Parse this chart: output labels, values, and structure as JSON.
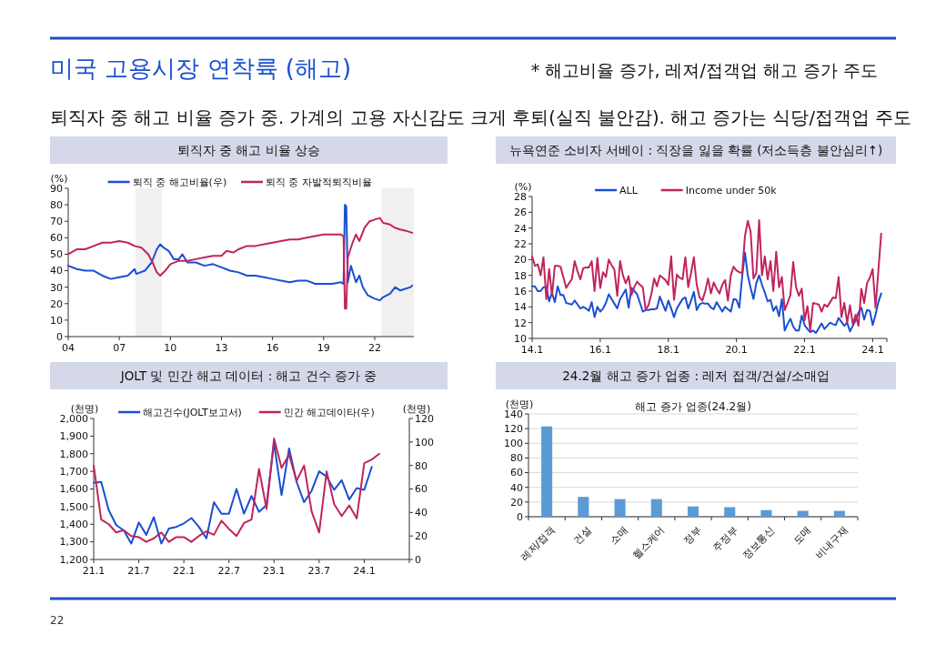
{
  "chart_data": [
    {
      "type": "other",
      "title": "미국 고용시장 연착륙 (해고)",
      "subtitle": "퇴직자 중 해고 비율 증가 중. 가계의 고용 자신감도 크게 후퇴(실직 불안감). 해고 증가는 식당/접객업 주도",
      "annotations": [
        "* 해고비율 증가, 레져/접객업 해고 증가 주도",
        "22"
      ]
    },
    {
      "type": "line",
      "title": "퇴직자 중 해고 비율 상승",
      "ylabel": "(%)",
      "legend": "top",
      "xlim": [
        2004,
        2024.3
      ],
      "xticks": [
        {
          "value": 2004,
          "label": "04"
        },
        {
          "value": 2007,
          "label": "07"
        },
        {
          "value": 2010,
          "label": "10"
        },
        {
          "value": 2013,
          "label": "13"
        },
        {
          "value": 2016,
          "label": "16"
        },
        {
          "value": 2019,
          "label": "19"
        },
        {
          "value": 2022,
          "label": "22"
        }
      ],
      "ylim": [
        0,
        90
      ],
      "yticks": [
        0,
        10,
        20,
        30,
        40,
        50,
        60,
        70,
        80,
        90
      ],
      "bands": [
        {
          "axis": "x",
          "from": 2007.95,
          "to": 2009.5,
          "color": "#f0f0f0"
        },
        {
          "axis": "x",
          "from": 2022.4,
          "to": 2024.3,
          "color": "#f0f0f0"
        }
      ],
      "series": [
        {
          "name": "퇴직 중 해고비율(우)",
          "color": "#1a4fd0",
          "x": [
            2004,
            2004.5,
            2005,
            2005.5,
            2006,
            2006.5,
            2007,
            2007.5,
            2007.9,
            2008,
            2008.5,
            2008.9,
            2009.2,
            2009.4,
            2009.6,
            2009.9,
            2010.2,
            2010.5,
            2010.7,
            2011,
            2011.5,
            2012,
            2012.5,
            2013,
            2013.5,
            2014,
            2014.5,
            2015,
            2015.5,
            2016,
            2016.5,
            2017,
            2017.5,
            2018,
            2018.5,
            2019,
            2019.5,
            2020,
            2020.17,
            2020.25,
            2020.33,
            2020.42,
            2020.6,
            2020.9,
            2021.1,
            2021.3,
            2021.6,
            2022,
            2022.3,
            2022.5,
            2022.9,
            2023.2,
            2023.5,
            2023.8,
            2024.1,
            2024.2
          ],
          "values": [
            43,
            41,
            40,
            40,
            37,
            35,
            36,
            37,
            41,
            38,
            40,
            45,
            53,
            56,
            54,
            52,
            47,
            47,
            50,
            45,
            45,
            43,
            44,
            42,
            40,
            39,
            37,
            37,
            36,
            35,
            34,
            33,
            34,
            34,
            32,
            32,
            32,
            33,
            32,
            80,
            79,
            33,
            43,
            33,
            37,
            30,
            25,
            23,
            22,
            24,
            26,
            30,
            28,
            29,
            30,
            31
          ]
        },
        {
          "name": "퇴직 중 자발적퇴직비율",
          "color": "#c0245e",
          "x": [
            2004,
            2004.5,
            2005,
            2005.5,
            2006,
            2006.5,
            2007,
            2007.5,
            2007.9,
            2008.3,
            2008.7,
            2009,
            2009.2,
            2009.4,
            2009.7,
            2010,
            2010.5,
            2011,
            2011.5,
            2012,
            2012.5,
            2013,
            2013.3,
            2013.7,
            2014,
            2014.5,
            2015,
            2015.5,
            2016,
            2016.5,
            2017,
            2017.5,
            2018,
            2018.5,
            2019,
            2019.5,
            2020,
            2020.17,
            2020.25,
            2020.33,
            2020.42,
            2020.7,
            2020.9,
            2021.1,
            2021.4,
            2021.7,
            2022,
            2022.3,
            2022.5,
            2022.9,
            2023.2,
            2023.5,
            2023.9,
            2024.2
          ],
          "values": [
            50,
            53,
            53,
            55,
            57,
            57,
            58,
            57,
            55,
            54,
            50,
            44,
            39,
            37,
            40,
            44,
            46,
            46,
            47,
            48,
            49,
            49,
            52,
            51,
            53,
            55,
            55,
            56,
            57,
            58,
            59,
            59,
            60,
            61,
            62,
            62,
            62,
            61,
            17,
            17,
            48,
            57,
            62,
            58,
            66,
            70,
            71,
            72,
            69,
            68,
            66,
            65,
            64,
            63
          ]
        }
      ]
    },
    {
      "type": "line",
      "title": "뉴욕연준 소비자 서베이 : 직장을 잃을 확률 (저소득층 불안심리↑)",
      "ylabel": "(%)",
      "legend": "top",
      "ylim": [
        10,
        28
      ],
      "yticks": [
        10,
        12,
        14,
        16,
        18,
        20,
        22,
        24,
        26,
        28
      ],
      "categories": [
        "14.1",
        null,
        null,
        null,
        null,
        null,
        null,
        null,
        null,
        null,
        null,
        null,
        null,
        null,
        null,
        null,
        null,
        null,
        null,
        null,
        null,
        null,
        null,
        null,
        "16.1",
        null,
        null,
        null,
        null,
        null,
        null,
        null,
        null,
        null,
        null,
        null,
        null,
        null,
        null,
        null,
        null,
        null,
        null,
        null,
        null,
        null,
        null,
        null,
        "18.1",
        null,
        null,
        null,
        null,
        null,
        null,
        null,
        null,
        null,
        null,
        null,
        null,
        null,
        null,
        null,
        null,
        null,
        null,
        null,
        null,
        null,
        null,
        null,
        "20.1",
        null,
        null,
        null,
        null,
        null,
        null,
        null,
        null,
        null,
        null,
        null,
        null,
        null,
        null,
        null,
        null,
        null,
        null,
        null,
        null,
        null,
        null,
        null,
        "22.1",
        null,
        null,
        null,
        null,
        null,
        null,
        null,
        null,
        null,
        null,
        null,
        null,
        null,
        null,
        null,
        null,
        null,
        null,
        null,
        null,
        null,
        null,
        null,
        "24.1",
        null,
        null,
        null,
        null,
        null
      ],
      "series": [
        {
          "name": "ALL",
          "color": "#1a4fd0",
          "values": [
            16.6,
            16.6,
            16.0,
            16.0,
            16.5,
            16.5,
            14.7,
            15.8,
            14.6,
            16.6,
            15.5,
            15.5,
            14.5,
            14.4,
            14.3,
            14.8,
            14.3,
            13.8,
            14.0,
            13.8,
            13.5,
            14.6,
            12.7,
            14.0,
            13.4,
            13.8,
            14.5,
            15.6,
            15.0,
            14.4,
            13.8,
            15.0,
            15.6,
            16.2,
            13.9,
            16.4,
            16.0,
            15.6,
            14.5,
            13.4,
            13.6,
            13.6,
            13.7,
            13.7,
            13.8,
            15.3,
            14.4,
            13.5,
            14.8,
            13.8,
            12.7,
            13.8,
            14.4,
            15.0,
            15.2,
            13.8,
            14.8,
            15.9,
            13.6,
            14.3,
            14.5,
            14.4,
            14.4,
            13.9,
            13.7,
            14.6,
            14.0,
            13.4,
            14.0,
            13.7,
            13.4,
            15.0,
            14.9,
            13.9,
            17.8,
            20.9,
            18.0,
            16.4,
            15.0,
            17.0,
            18.0,
            16.8,
            15.8,
            14.7,
            14.9,
            13.5,
            14.1,
            12.8,
            15.0,
            11.0,
            11.8,
            12.5,
            11.5,
            11.0,
            11.0,
            12.9,
            11.7,
            11.2,
            10.8,
            11.0,
            10.7,
            11.3,
            11.9,
            11.2,
            11.6,
            12.0,
            11.8,
            11.7,
            12.6,
            12.1,
            11.6,
            12.0,
            10.9,
            11.6,
            12.3,
            13.3,
            13.9,
            12.4,
            13.6,
            13.5,
            11.7,
            13.0,
            14.6,
            15.7,
            null,
            null
          ]
        },
        {
          "name": "Income under 50k",
          "color": "#c0245e",
          "values": [
            20.4,
            19.2,
            19.4,
            18.0,
            20.3,
            15.0,
            18.8,
            15.4,
            19.2,
            19.2,
            19.1,
            17.8,
            16.4,
            17.0,
            17.5,
            19.8,
            18.5,
            17.5,
            18.9,
            19.0,
            19.0,
            19.8,
            16.0,
            20.2,
            16.4,
            18.4,
            17.8,
            20.0,
            19.3,
            18.7,
            15.4,
            19.8,
            18.0,
            17.0,
            17.9,
            15.5,
            16.5,
            17.2,
            16.8,
            16.5,
            13.6,
            14.2,
            15.6,
            17.6,
            16.6,
            18.0,
            17.7,
            17.4,
            16.8,
            20.4,
            14.9,
            18.1,
            17.7,
            17.5,
            20.3,
            16.5,
            18.3,
            20.3,
            16.8,
            15.2,
            14.8,
            16.0,
            17.6,
            15.7,
            17.1,
            16.3,
            15.7,
            16.8,
            17.4,
            14.8,
            18.0,
            19.1,
            18.6,
            18.4,
            18.3,
            23.0,
            24.9,
            23.5,
            17.6,
            18.3,
            25.0,
            18.0,
            20.4,
            17.5,
            19.8,
            16.0,
            21.0,
            16.5,
            17.8,
            13.6,
            14.5,
            15.5,
            19.7,
            16.5,
            15.4,
            16.3,
            12.3,
            14.1,
            11.0,
            14.5,
            14.4,
            14.3,
            13.4,
            14.3,
            14.0,
            14.6,
            15.2,
            15.1,
            17.8,
            12.7,
            14.5,
            12.0,
            14.2,
            11.8,
            13.0,
            11.6,
            16.3,
            14.5,
            17.0,
            17.7,
            18.8,
            13.9,
            18.6,
            23.3,
            null,
            null
          ]
        }
      ]
    },
    {
      "type": "line",
      "title": "JOLT 및 민간 해고 데이터 : 해고 건수 증가 중",
      "ylabel": "(천명)",
      "y2label": "(천명)",
      "legend": "top",
      "ylim": [
        1200,
        2000
      ],
      "yticks": [
        {
          "value": 1200,
          "label": "1,200"
        },
        {
          "value": 1300,
          "label": "1,300"
        },
        {
          "value": 1400,
          "label": "1,400"
        },
        {
          "value": 1500,
          "label": "1,500"
        },
        {
          "value": 1600,
          "label": "1,600"
        },
        {
          "value": 1700,
          "label": "1,700"
        },
        {
          "value": 1800,
          "label": "1,800"
        },
        {
          "value": 1900,
          "label": "1,900"
        },
        {
          "value": 2000,
          "label": "2,000"
        }
      ],
      "y2lim": [
        0,
        120
      ],
      "y2ticks": [
        0,
        20,
        40,
        60,
        80,
        100,
        120
      ],
      "categories": [
        "21.1",
        null,
        null,
        null,
        null,
        null,
        "21.7",
        null,
        null,
        null,
        null,
        null,
        "22.1",
        null,
        null,
        null,
        null,
        null,
        "22.7",
        null,
        null,
        null,
        null,
        null,
        "23.1",
        null,
        null,
        null,
        null,
        null,
        "23.7",
        null,
        null,
        null,
        null,
        null,
        "24.1",
        null,
        null,
        null,
        null,
        null,
        null
      ],
      "series": [
        {
          "name": "해고건수(JOLT보고서)",
          "color": "#1a4fd0",
          "values": [
            1635,
            1640,
            1480,
            1395,
            1365,
            1290,
            1410,
            1340,
            1440,
            1290,
            1375,
            1385,
            1405,
            1435,
            1385,
            1320,
            1525,
            1460,
            1460,
            1600,
            1460,
            1560,
            1470,
            1510,
            1860,
            1565,
            1830,
            1640,
            1525,
            1590,
            1700,
            1670,
            1595,
            1650,
            1540,
            1605,
            1595,
            1725,
            null,
            null,
            null,
            null,
            null
          ]
        },
        {
          "name": "민간 해고데이타(우)",
          "color": "#c0245e",
          "axis": "y2",
          "values": [
            80,
            34,
            30,
            23,
            25,
            20,
            19,
            15,
            18,
            23,
            15,
            19,
            19,
            15,
            20,
            24,
            21,
            33,
            26,
            20,
            31,
            34,
            77,
            43,
            103,
            78,
            89,
            67,
            80,
            41,
            23,
            75,
            47,
            37,
            46,
            35,
            82,
            85,
            90,
            null,
            null,
            null,
            null
          ]
        }
      ]
    },
    {
      "type": "bar",
      "title": "24.2월 해고 증가 업종 : 레저 접객/건설/소매업",
      "subtitle": "해고 증가 업종(24.2월)",
      "ylabel": "(천명)",
      "grid": "y",
      "categories": [
        "레저/접객",
        "건설",
        "소매",
        "헬스케어",
        "정부",
        "주정부",
        "정보통신",
        "도매",
        "비내구재"
      ],
      "values": [
        123,
        27,
        24,
        24,
        14,
        13,
        9,
        8,
        8
      ],
      "color": "#5b9bd5",
      "ylim": [
        0,
        140
      ],
      "yticks": [
        0,
        20,
        40,
        60,
        80,
        100,
        120,
        140
      ]
    }
  ]
}
